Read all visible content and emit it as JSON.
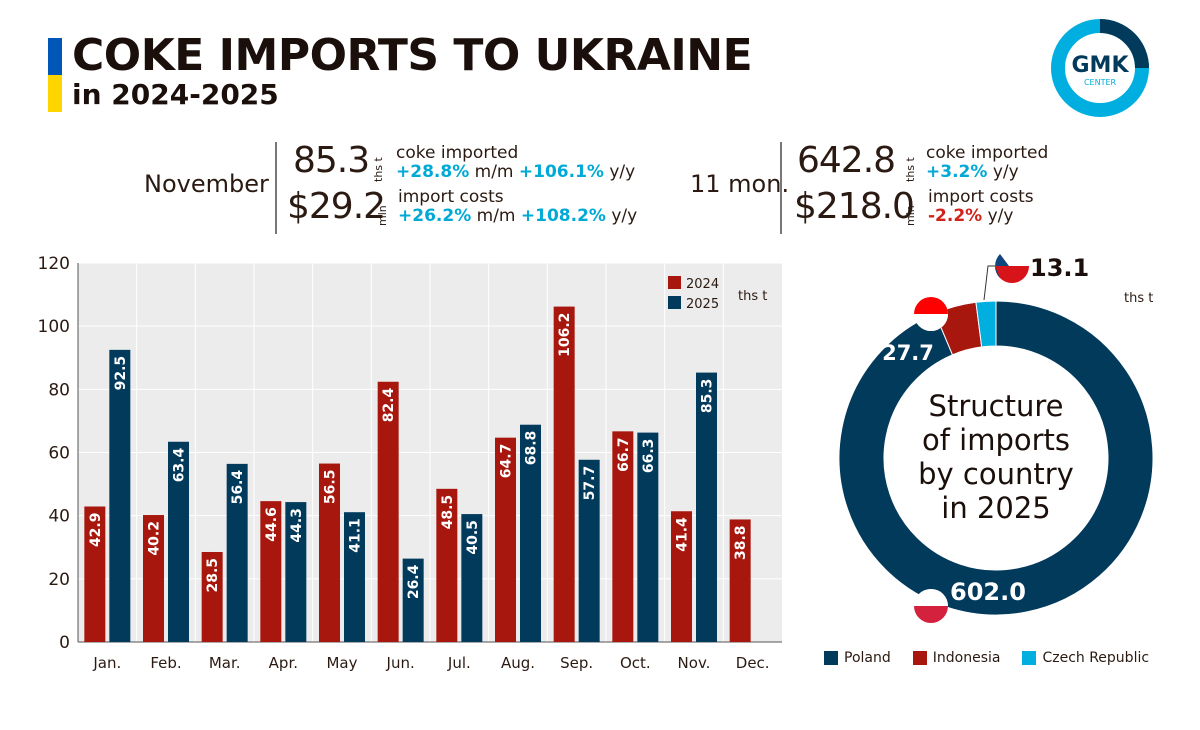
{
  "header": {
    "title": "COKE IMPORTS TO UKRAINE",
    "subtitle": "in 2024-2025",
    "logo_text": "GMK",
    "logo_subtext": "CENTER"
  },
  "stats": {
    "month": {
      "period": "November",
      "volume": "85.3",
      "volume_unit": "ths t",
      "volume_label": "coke imported",
      "volume_mm": "+28.8%",
      "mm_label": "m/m",
      "volume_yy": "+106.1%",
      "yy_label": "y/y",
      "cost": "$29.2",
      "cost_unit": "mln",
      "cost_label": "import costs",
      "cost_mm": "+26.2%",
      "cost_yy": "+108.2%"
    },
    "ytd": {
      "period": "11 mon.",
      "volume": "642.8",
      "volume_unit": "ths t",
      "volume_label": "coke imported",
      "volume_yy": "+3.2%",
      "yy_label": "y/y",
      "cost": "$218.0",
      "cost_unit": "mln",
      "cost_label": "import costs",
      "cost_yy": "-2.2%"
    }
  },
  "colors": {
    "2024": "#a8170e",
    "2025": "#023a5c",
    "poland": "#023a5c",
    "indonesia": "#a8170e",
    "czech": "#00aee0"
  },
  "chart_data": [
    {
      "type": "bar",
      "categories": [
        "Jan.",
        "Feb.",
        "Mar.",
        "Apr.",
        "May",
        "Jun.",
        "Jul.",
        "Aug.",
        "Sep.",
        "Oct.",
        "Nov.",
        "Dec."
      ],
      "series": [
        {
          "name": "2024",
          "values": [
            42.9,
            40.2,
            28.5,
            44.6,
            56.5,
            82.4,
            48.5,
            64.7,
            106.2,
            66.7,
            41.4,
            38.8
          ]
        },
        {
          "name": "2025",
          "values": [
            92.5,
            63.4,
            56.4,
            44.3,
            41.1,
            26.4,
            40.5,
            68.8,
            57.7,
            66.3,
            85.3,
            null
          ]
        }
      ],
      "unit": "ths t",
      "ylim": [
        0,
        120
      ],
      "yticks": [
        0,
        20,
        40,
        60,
        80,
        100,
        120
      ],
      "grid": true,
      "legend": "top-right"
    },
    {
      "type": "pie",
      "title": "Structure of imports by country in 2025",
      "unit": "ths t",
      "labels": [
        "Poland",
        "Indonesia",
        "Czech Republic"
      ],
      "values": [
        602.0,
        27.7,
        13.1
      ],
      "value_labels": [
        "602.0",
        "27.7",
        "13.1"
      ],
      "legend": "bottom"
    }
  ]
}
